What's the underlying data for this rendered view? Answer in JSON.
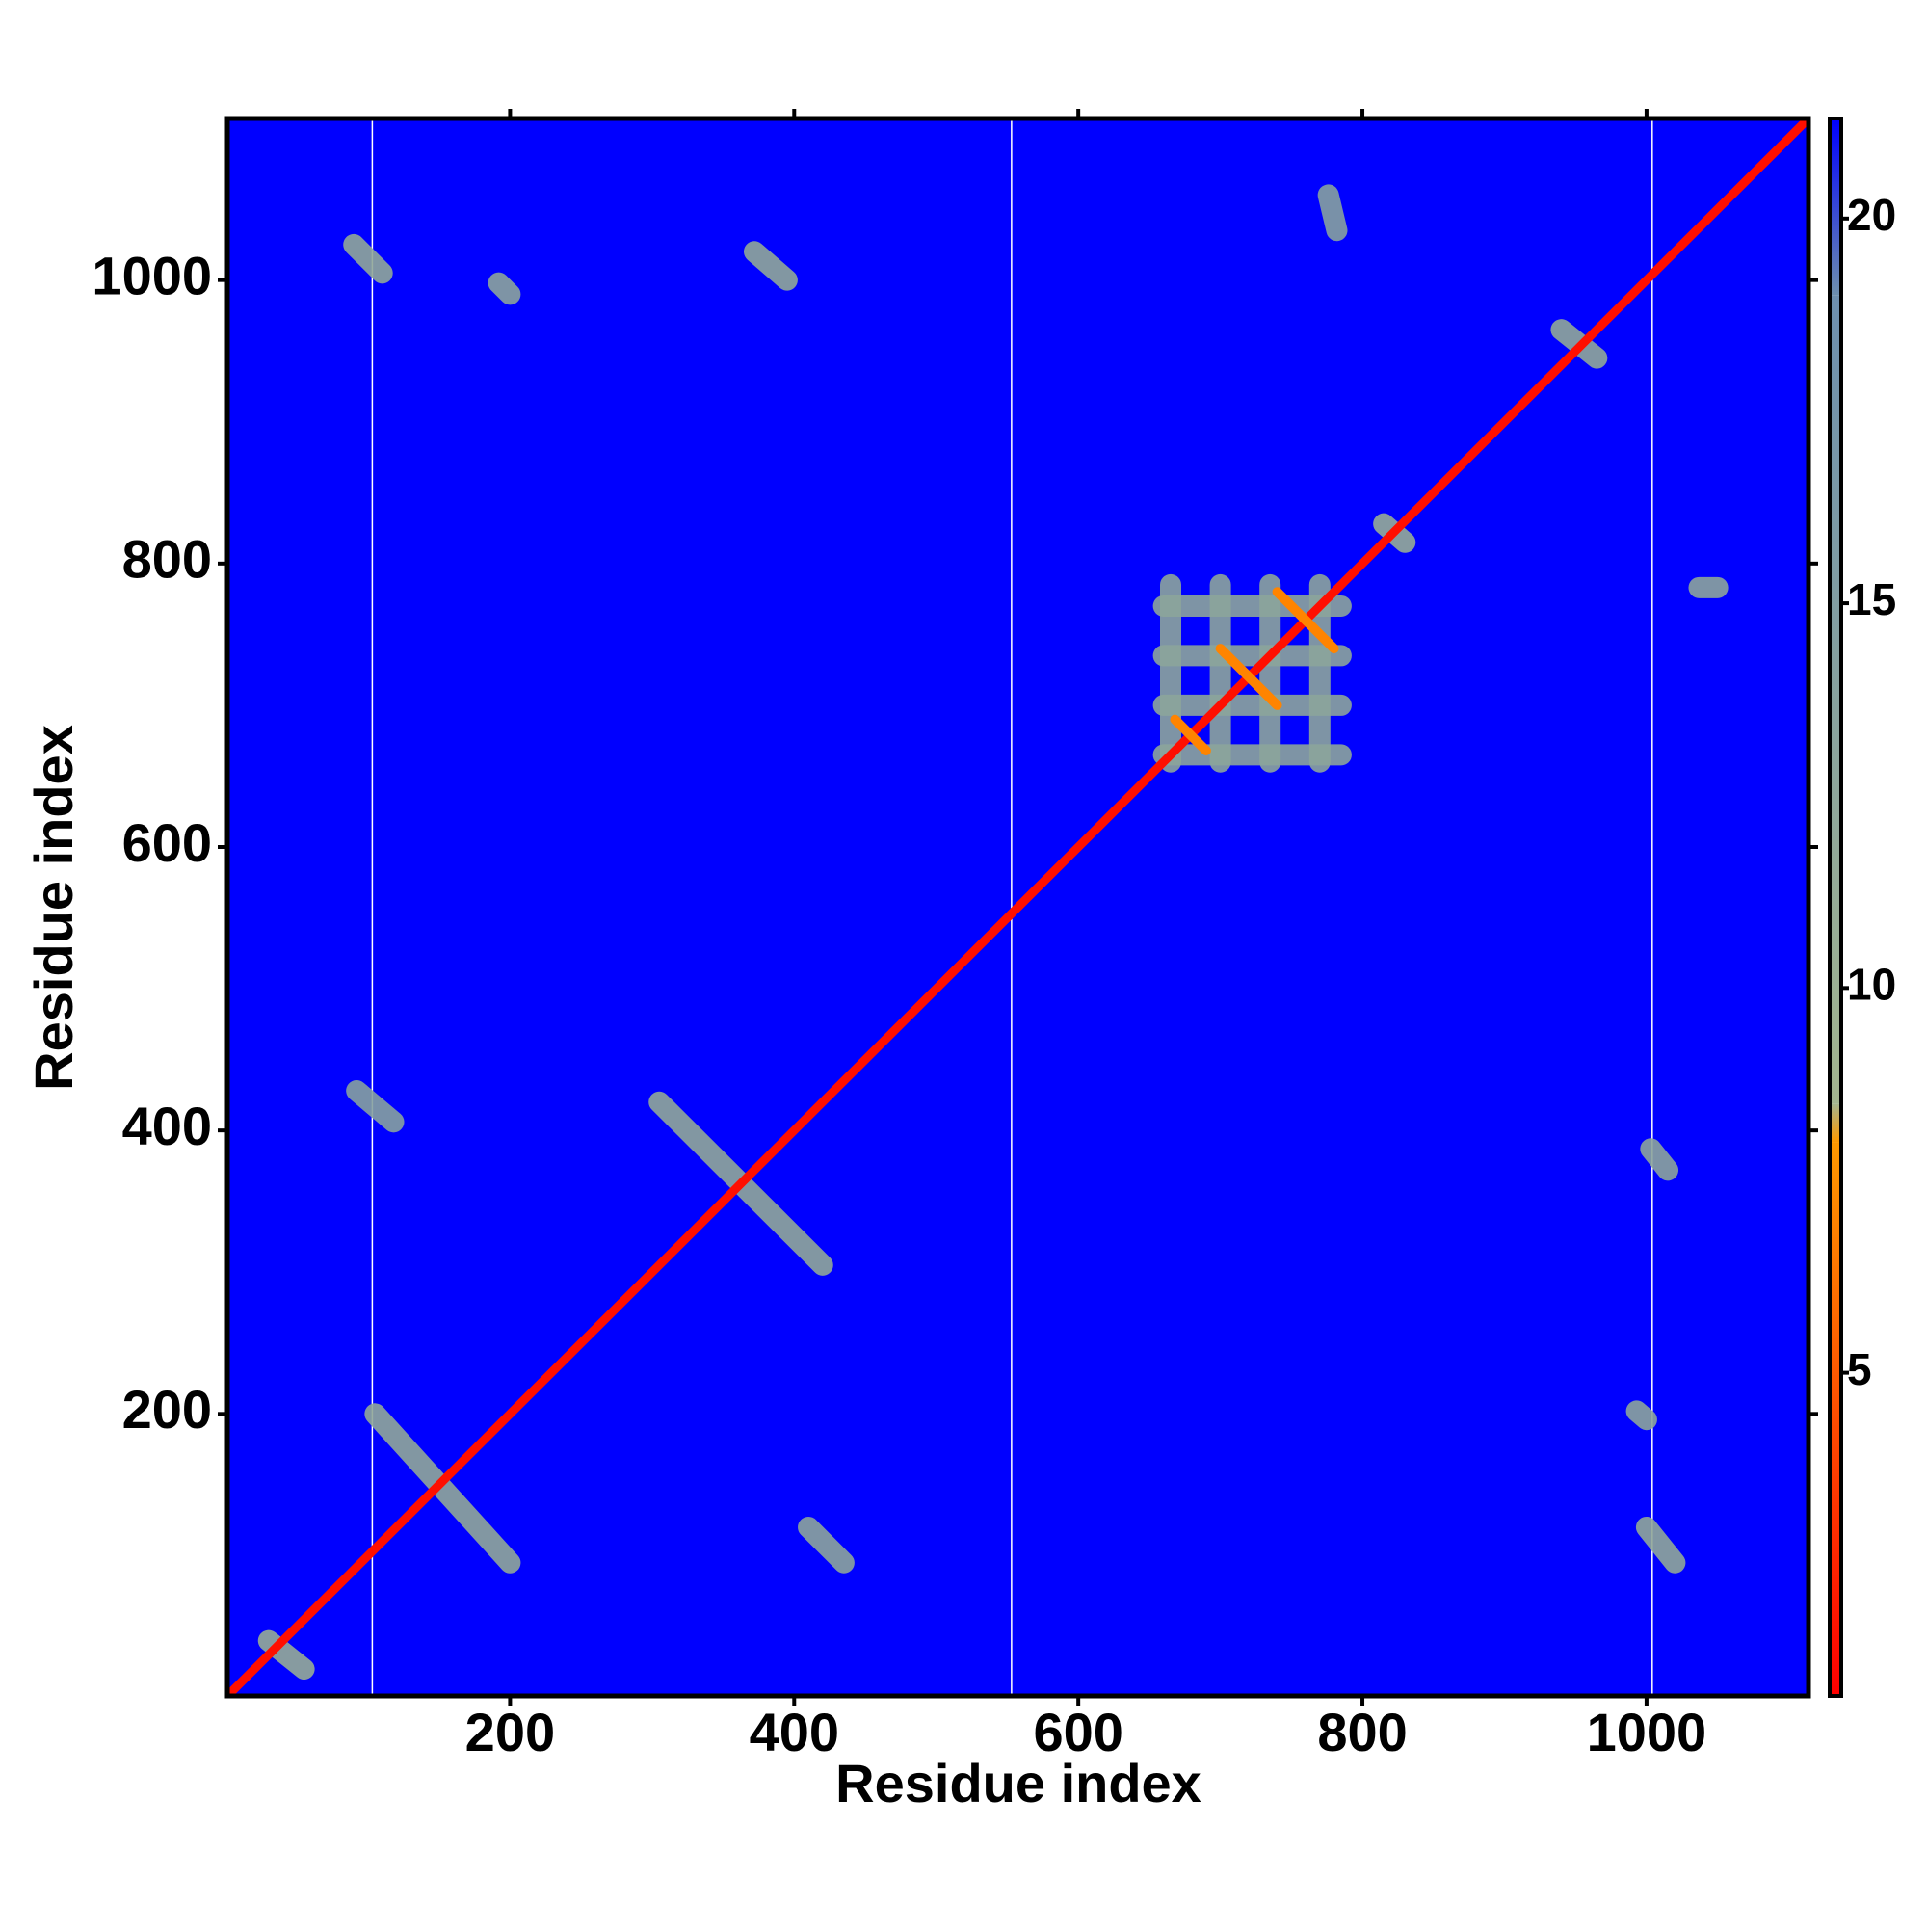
{
  "chart_data": {
    "type": "heatmap",
    "x_label": "Residue index",
    "y_label": "Residue index",
    "xlim": [
      1,
      1114
    ],
    "ylim": [
      1,
      1114
    ],
    "xticks": [
      200,
      400,
      600,
      800,
      1000
    ],
    "yticks": [
      200,
      400,
      600,
      800,
      1000
    ],
    "background_color": "#0000ff",
    "gaps": [
      103,
      553,
      1004
    ],
    "clim": [
      0.8,
      21.3
    ],
    "cticks": [
      5,
      10,
      15,
      20
    ],
    "colorscale": [
      [
        0.8,
        "#ff0000"
      ],
      [
        8,
        "#ff9900"
      ],
      [
        8.5,
        "#a3b58f"
      ],
      [
        19,
        "#6d8fae"
      ],
      [
        21.3,
        "#0000ff"
      ]
    ],
    "segments": {
      "x0": [
        1,
        105,
        305,
        660,
        660,
        660,
        660,
        665,
        700,
        735,
        770,
        668,
        700,
        740,
        90,
        192,
        372,
        1003,
        1000,
        993,
        410,
        92,
        1037,
        776,
        940,
        30,
        815
      ],
      "y0": [
        1,
        200,
        420,
        665,
        700,
        735,
        770,
        660,
        660,
        660,
        660,
        690,
        740,
        780,
        1025,
        998,
        1020,
        387,
        120,
        202,
        120,
        428,
        783,
        1060,
        965,
        40,
        828
      ],
      "x1": [
        1114,
        200,
        420,
        785,
        785,
        785,
        785,
        665,
        700,
        735,
        770,
        690,
        740,
        780,
        110,
        200,
        395,
        1015,
        1020,
        1000,
        435,
        118,
        1050,
        782,
        965,
        55,
        830
      ],
      "y1": [
        1114,
        95,
        305,
        665,
        700,
        735,
        770,
        785,
        785,
        785,
        785,
        668,
        700,
        740,
        1005,
        990,
        1000,
        372,
        95,
        196,
        95,
        406,
        783,
        1035,
        945,
        20,
        815
      ],
      "values": [
        1.5,
        12,
        12,
        13,
        13,
        13,
        13,
        13,
        13,
        13,
        13,
        7,
        7,
        7,
        12,
        13,
        12,
        13,
        12,
        13,
        13,
        14,
        13,
        14,
        12,
        11,
        11
      ]
    }
  }
}
